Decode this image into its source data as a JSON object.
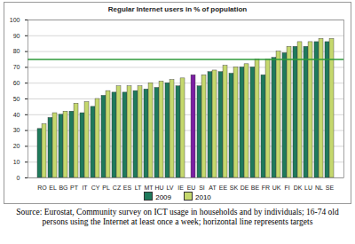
{
  "chart_data": {
    "type": "bar",
    "title": "Regular Internet users in % of population",
    "categories": [
      "RO",
      "EL",
      "BG",
      "PT",
      "IT",
      "CY",
      "PL",
      "CZ",
      "ES",
      "LT",
      "MT",
      "HU",
      "LV",
      "IE",
      "EU",
      "SI",
      "AT",
      "EE",
      "SK",
      "DE",
      "BE",
      "FR",
      "UK",
      "FI",
      "DK",
      "LU",
      "NL",
      "SE"
    ],
    "series": [
      {
        "name": "2009",
        "color": "#1f7a5c",
        "colors": [
          "#1f7a5c",
          "#1f7a5c",
          "#1f7a5c",
          "#1f7a5c",
          "#1f7a5c",
          "#1f7a5c",
          "#1f7a5c",
          "#1f7a5c",
          "#1f7a5c",
          "#1f7a5c",
          "#1f7a5c",
          "#1f7a5c",
          "#1f7a5c",
          "#1f7a5c",
          "#7b1fa2",
          "#1f7a5c",
          "#1f7a5c",
          "#1f7a5c",
          "#1f7a5c",
          "#1f7a5c",
          "#1f7a5c",
          "#1f7a5c",
          "#1f7a5c",
          "#1f7a5c",
          "#1f7a5c",
          "#1f7a5c",
          "#1f7a5c",
          "#1f7a5c"
        ],
        "values": [
          31,
          38,
          40,
          42,
          41,
          45,
          52,
          54,
          54,
          55,
          56,
          57,
          60,
          58,
          null,
          58,
          67,
          67,
          66,
          70,
          70,
          65,
          76,
          79,
          83,
          83,
          86,
          86
        ]
      },
      {
        "name": "2010",
        "color": "#c5d86d",
        "colors": [
          "#c5d86d",
          "#c5d86d",
          "#c5d86d",
          "#c5d86d",
          "#c5d86d",
          "#c5d86d",
          "#c5d86d",
          "#c5d86d",
          "#c5d86d",
          "#c5d86d",
          "#c5d86d",
          "#c5d86d",
          "#c5d86d",
          "#c5d86d",
          "#7b1fa2",
          "#c5d86d",
          "#c5d86d",
          "#c5d86d",
          "#c5d86d",
          "#c5d86d",
          "#c5d86d",
          "#c5d86d",
          "#c5d86d",
          "#c5d86d",
          "#c5d86d",
          "#c5d86d",
          "#c5d86d",
          "#c5d86d"
        ],
        "values": [
          34,
          41,
          42,
          47,
          48,
          50,
          55,
          58,
          58,
          58,
          60,
          61,
          62,
          63,
          65,
          65,
          68,
          71,
          70,
          72,
          75,
          75,
          80,
          83,
          86,
          86,
          88,
          88
        ]
      }
    ],
    "target": 75,
    "ylim": [
      0,
      100
    ],
    "yticks": [
      0,
      10,
      20,
      30,
      40,
      50,
      60,
      70,
      80,
      90,
      100
    ],
    "grid": true,
    "legend": "bottom",
    "caption": "Source: Eurostat, Community survey on ICT usage in households and by individuals; 16-74 old persons using the Internet at least once a week; horizontal line represents targets"
  }
}
